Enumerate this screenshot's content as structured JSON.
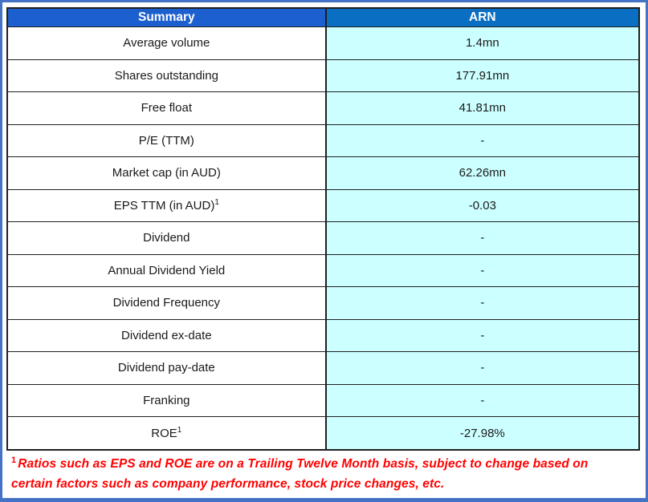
{
  "colors": {
    "frame_border": "#4472C4",
    "header_left_bg": "#1C5FCE",
    "header_right_bg": "#0A6FC2",
    "value_cell_bg": "#CCFFFF",
    "grid_border": "#1f1f1f",
    "footnote_text": "#FF0000",
    "header_text": "#ffffff",
    "body_text": "#1a1a1a"
  },
  "table": {
    "headers": {
      "label_col": "Summary",
      "value_col": "ARN"
    },
    "rows": [
      {
        "label": "Average volume",
        "sup": "",
        "value": "1.4mn"
      },
      {
        "label": "Shares outstanding",
        "sup": "",
        "value": "177.91mn"
      },
      {
        "label": "Free float",
        "sup": "",
        "value": "41.81mn"
      },
      {
        "label": "P/E (TTM)",
        "sup": "",
        "value": "-"
      },
      {
        "label": "Market cap (in AUD)",
        "sup": "",
        "value": "62.26mn"
      },
      {
        "label": "EPS TTM (in AUD)",
        "sup": "1",
        "value": "-0.03"
      },
      {
        "label": "Dividend",
        "sup": "",
        "value": "-"
      },
      {
        "label": "Annual Dividend Yield",
        "sup": "",
        "value": "-"
      },
      {
        "label": "Dividend Frequency",
        "sup": "",
        "value": "-"
      },
      {
        "label": "Dividend ex-date",
        "sup": "",
        "value": "-"
      },
      {
        "label": "Dividend pay-date",
        "sup": "",
        "value": "-"
      },
      {
        "label": "Franking",
        "sup": "",
        "value": "-"
      },
      {
        "label": "ROE",
        "sup": "1",
        "value": "-27.98%"
      }
    ]
  },
  "footnote": {
    "sup": "1",
    "text": "Ratios such as EPS and ROE are on a Trailing Twelve Month basis, subject to change based on certain factors such as company performance, stock price changes, etc."
  }
}
